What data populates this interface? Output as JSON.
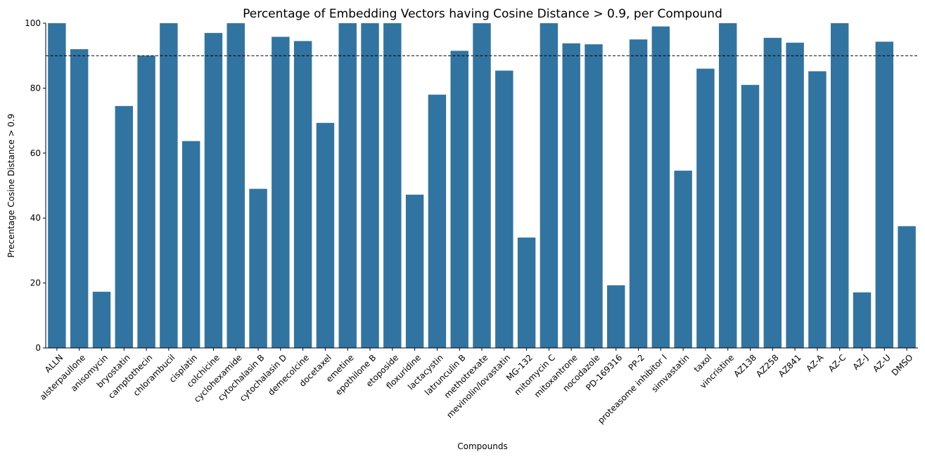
{
  "chart_data": {
    "type": "bar",
    "title": "Percentage of Embedding Vectors having Cosine Distance > 0.9, per Compound",
    "xlabel": "Compounds",
    "ylabel": "Precentage Cosine Distance > 0.9",
    "ylim": [
      0,
      100
    ],
    "yticks": [
      0,
      20,
      40,
      60,
      80,
      100
    ],
    "reference_line": 90,
    "bar_color": "#3274a1",
    "grid": false,
    "categories": [
      "ALLN",
      "alsterpaullone",
      "anisomycin",
      "bryostatin",
      "camptothecin",
      "chlorambucil",
      "cisplatin",
      "colchicine",
      "cyclohexamide",
      "cytochalasin B",
      "cytochalasin D",
      "demecolcine",
      "docetaxel",
      "emetine",
      "epothilone B",
      "etoposide",
      "floxuridine",
      "lactacystin",
      "latrunculin B",
      "methotrexate",
      "mevinolin/lovastatin",
      "MG-132",
      "mitomycin C",
      "mitoxantrone",
      "nocodazole",
      "PD-169316",
      "PP-2",
      "proteasome inhibitor I",
      "simvastatin",
      "taxol",
      "vincristine",
      "AZ138",
      "AZ258",
      "AZ841",
      "AZ-A",
      "AZ-C",
      "AZ-J",
      "AZ-U",
      "DMSO"
    ],
    "values": [
      100,
      92,
      17.3,
      74.5,
      90,
      100,
      63.7,
      97,
      100,
      49,
      95.8,
      94.5,
      69.3,
      100,
      100,
      100,
      47.2,
      78,
      91.5,
      100,
      85.4,
      34,
      100,
      93.8,
      93.5,
      19.3,
      95,
      99,
      54.6,
      86,
      100,
      81,
      95.5,
      94,
      85.2,
      100,
      17.1,
      94.3,
      37.5
    ]
  }
}
